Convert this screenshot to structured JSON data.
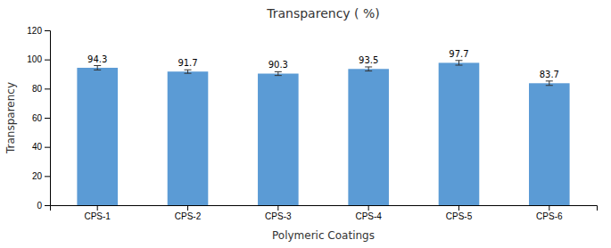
{
  "chart_data": {
    "type": "bar",
    "title": "Transparency ( %)",
    "x_label": "Polymeric Coatings",
    "y_label": "Transparency",
    "categories": [
      "CPS-1",
      "CPS-2",
      "CPS-3",
      "CPS-4",
      "CPS-5",
      "CPS-6"
    ],
    "values": [
      94.3,
      91.7,
      90.3,
      93.5,
      97.7,
      83.7
    ],
    "errors": [
      1.5,
      1.2,
      1.3,
      1.4,
      1.6,
      1.5
    ],
    "color": "#5b9bd5",
    "ylim": [
      0,
      120
    ],
    "yticks": [
      0,
      20,
      40,
      60,
      80,
      100,
      120
    ],
    "grid": false,
    "data_labels": true
  }
}
